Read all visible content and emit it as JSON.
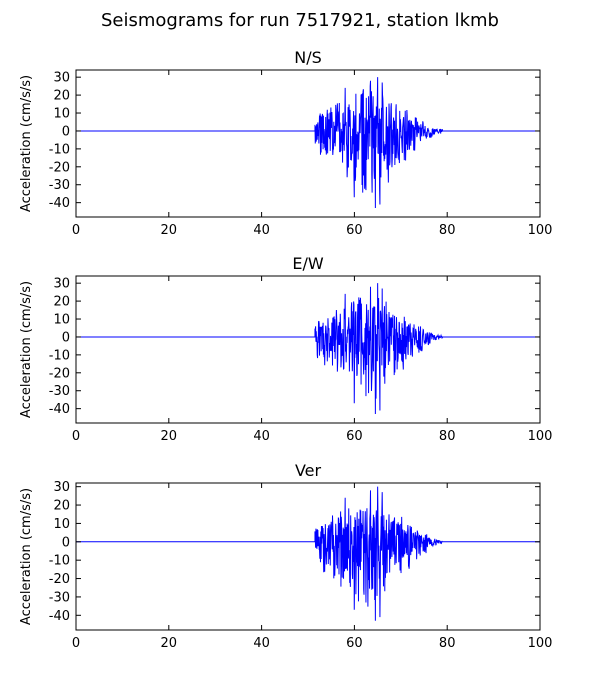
{
  "figure": {
    "title": "Seismograms for run 7517921, station lkmb"
  },
  "chart_data": [
    {
      "type": "line",
      "title": "N/S",
      "xlabel": "",
      "ylabel": "Acceleration (cm/s/s)",
      "xlim": [
        0,
        100
      ],
      "ylim": [
        -48,
        34
      ],
      "xticks": [
        0,
        20,
        40,
        60,
        80,
        100
      ],
      "yticks": [
        -40,
        -30,
        -20,
        -10,
        0,
        10,
        20,
        30
      ],
      "grid": false,
      "series": [
        {
          "color": "#0000ff",
          "signal": {
            "quiet_before": [
              0,
              51.5
            ],
            "active": [
              51.5,
              79
            ],
            "peak_time": 64,
            "max": 30,
            "min": -43
          }
        }
      ]
    },
    {
      "type": "line",
      "title": "E/W",
      "xlabel": "",
      "ylabel": "Acceleration (cm/s/s)",
      "xlim": [
        0,
        100
      ],
      "ylim": [
        -48,
        34
      ],
      "xticks": [
        0,
        20,
        40,
        60,
        80,
        100
      ],
      "yticks": [
        -40,
        -30,
        -20,
        -10,
        0,
        10,
        20,
        30
      ],
      "grid": false,
      "series": [
        {
          "color": "#0000ff",
          "signal": {
            "quiet_before": [
              0,
              51.5
            ],
            "active": [
              51.5,
              79
            ],
            "peak_time": 64,
            "max": 30,
            "min": -43
          }
        }
      ]
    },
    {
      "type": "line",
      "title": "Ver",
      "xlabel": "",
      "ylabel": "Acceleration (cm/s/s)",
      "xlim": [
        0,
        100
      ],
      "ylim": [
        -48,
        32
      ],
      "xticks": [
        0,
        20,
        40,
        60,
        80,
        100
      ],
      "yticks": [
        -40,
        -30,
        -20,
        -10,
        0,
        10,
        20,
        30
      ],
      "grid": false,
      "series": [
        {
          "color": "#0000ff",
          "signal": {
            "quiet_before": [
              0,
              51.5
            ],
            "active": [
              51.5,
              79
            ],
            "peak_time": 64,
            "max": 30,
            "min": -43
          }
        }
      ]
    }
  ]
}
